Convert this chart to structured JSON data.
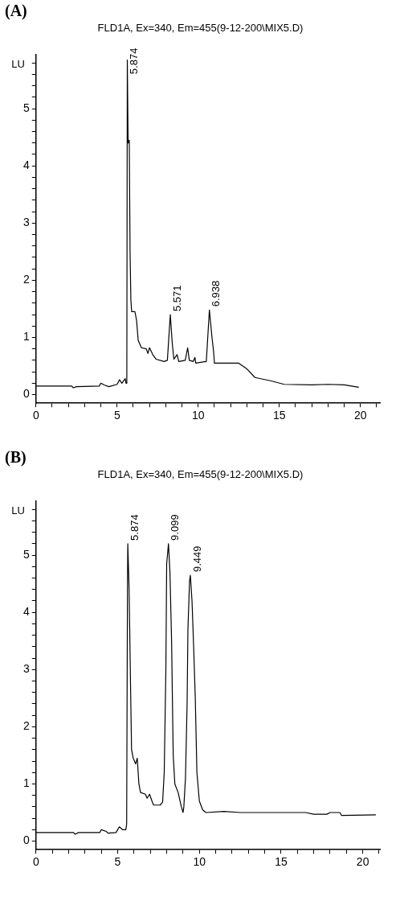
{
  "chart_data": [
    {
      "type": "line",
      "title": "FLD1A, Ex=340, Em=455(9-12-200\\MIX5.D)",
      "ylabel": "LU",
      "annotations": [
        "(A)",
        {
          "text": "5.874",
          "x": 5.63,
          "y": 5.85
        },
        {
          "text": "5.571",
          "x": 8.28,
          "y": 1.4
        },
        {
          "text": "6.938",
          "x": 10.69,
          "y": 1.48
        }
      ],
      "series": [
        {
          "color": "#000000",
          "x": [
            0,
            2.2,
            2.3,
            2.5,
            3.9,
            4.0,
            4.2,
            4.5,
            5.0,
            5.15,
            5.3,
            5.5,
            5.55,
            5.6,
            5.63,
            5.68,
            5.75,
            5.8,
            5.85,
            5.9,
            6.1,
            6.2,
            6.3,
            6.5,
            6.8,
            6.9,
            7.0,
            7.2,
            7.4,
            7.9,
            8.1,
            8.28,
            8.4,
            8.5,
            8.7,
            8.8,
            9.2,
            9.35,
            9.45,
            9.7,
            9.8,
            9.85,
            10.5,
            10.69,
            10.85,
            10.95,
            11.0,
            12.5,
            13.0,
            13.5,
            14.5,
            15.3,
            17.0,
            18.0,
            19.0,
            19.9
          ],
          "values": [
            0.15,
            0.15,
            0.12,
            0.14,
            0.15,
            0.2,
            0.17,
            0.14,
            0.18,
            0.26,
            0.2,
            0.28,
            0.2,
            0.2,
            5.85,
            4.4,
            4.45,
            2.5,
            1.65,
            1.45,
            1.45,
            1.3,
            0.95,
            0.82,
            0.8,
            0.72,
            0.82,
            0.7,
            0.62,
            0.58,
            0.6,
            1.4,
            0.9,
            0.62,
            0.7,
            0.58,
            0.6,
            0.82,
            0.6,
            0.58,
            0.65,
            0.55,
            0.58,
            1.48,
            1.0,
            0.75,
            0.55,
            0.55,
            0.45,
            0.3,
            0.24,
            0.18,
            0.17,
            0.18,
            0.17,
            0.13
          ]
        }
      ],
      "xlim": [
        0,
        21.2
      ],
      "xticks": [
        0,
        {
          "value": 1,
          "label": null
        },
        {
          "value": 2,
          "label": null
        },
        {
          "value": 3,
          "label": null
        },
        {
          "value": 4,
          "label": null
        },
        5,
        {
          "value": 6,
          "label": null
        },
        {
          "value": 7,
          "label": null
        },
        {
          "value": 8,
          "label": null
        },
        {
          "value": 9,
          "label": null
        },
        10,
        {
          "value": 11,
          "label": null
        },
        {
          "value": 12,
          "label": null
        },
        {
          "value": 13,
          "label": null
        },
        {
          "value": 14,
          "label": null
        },
        15,
        {
          "value": 16,
          "label": null
        },
        {
          "value": 17,
          "label": null
        },
        {
          "value": 18,
          "label": null
        },
        {
          "value": 19,
          "label": null
        },
        20,
        {
          "value": 21,
          "label": null
        }
      ],
      "ylim": [
        -0.15,
        5.95
      ],
      "yticks": [
        0,
        {
          "value": 0.2,
          "label": null
        },
        {
          "value": 0.4,
          "label": null
        },
        {
          "value": 0.6,
          "label": null
        },
        {
          "value": 0.8,
          "label": null
        },
        1,
        {
          "value": 1.2,
          "label": null
        },
        {
          "value": 1.4,
          "label": null
        },
        {
          "value": 1.6,
          "label": null
        },
        {
          "value": 1.8,
          "label": null
        },
        2,
        {
          "value": 2.2,
          "label": null
        },
        {
          "value": 2.4,
          "label": null
        },
        {
          "value": 2.6,
          "label": null
        },
        {
          "value": 2.8,
          "label": null
        },
        3,
        {
          "value": 3.2,
          "label": null
        },
        {
          "value": 3.4,
          "label": null
        },
        {
          "value": 3.6,
          "label": null
        },
        {
          "value": 3.8,
          "label": null
        },
        4,
        {
          "value": 4.2,
          "label": null
        },
        {
          "value": 4.4,
          "label": null
        },
        {
          "value": 4.6,
          "label": null
        },
        {
          "value": 4.8,
          "label": null
        },
        5,
        {
          "value": 5.2,
          "label": null
        },
        {
          "value": 5.4,
          "label": null
        },
        {
          "value": 5.6,
          "label": null
        },
        {
          "value": 5.8,
          "label": null
        }
      ]
    },
    {
      "type": "line",
      "title": "FLD1A, Ex=340, Em=455(9-12-200\\MIX5.D)",
      "ylabel": "LU",
      "annotations": [
        "(B)",
        {
          "text": "5.874",
          "x": 5.62,
          "y": 5.2
        },
        {
          "text": "9.099",
          "x": 8.11,
          "y": 5.2
        },
        {
          "text": "9.449",
          "x": 9.45,
          "y": 4.65
        }
      ],
      "series": [
        {
          "color": "#000000",
          "x": [
            0,
            2.3,
            2.4,
            2.6,
            3.9,
            4.0,
            4.3,
            4.4,
            4.9,
            5.1,
            5.3,
            5.5,
            5.55,
            5.6,
            5.62,
            5.7,
            5.8,
            5.85,
            5.95,
            6.1,
            6.2,
            6.3,
            6.4,
            6.7,
            6.8,
            6.95,
            7.1,
            7.2,
            7.6,
            7.75,
            7.85,
            7.95,
            8.0,
            8.11,
            8.2,
            8.3,
            8.4,
            8.5,
            8.7,
            8.9,
            9.0,
            9.05,
            9.15,
            9.25,
            9.3,
            9.4,
            9.45,
            9.55,
            9.65,
            9.75,
            9.85,
            10.0,
            10.2,
            10.4,
            11.5,
            12.5,
            16.5,
            17.0,
            17.8,
            18.0,
            18.6,
            18.7,
            20.8
          ],
          "values": [
            0.15,
            0.15,
            0.12,
            0.15,
            0.15,
            0.2,
            0.17,
            0.14,
            0.15,
            0.25,
            0.2,
            0.2,
            0.3,
            4.4,
            5.2,
            4.4,
            2.5,
            1.6,
            1.45,
            1.35,
            1.45,
            1.0,
            0.85,
            0.82,
            0.75,
            0.82,
            0.7,
            0.63,
            0.63,
            0.68,
            1.2,
            3.0,
            4.85,
            5.2,
            4.7,
            3.5,
            1.5,
            1.0,
            0.85,
            0.6,
            0.5,
            0.6,
            1.1,
            2.4,
            3.7,
            4.55,
            4.65,
            4.2,
            3.4,
            2.5,
            1.2,
            0.7,
            0.55,
            0.5,
            0.52,
            0.5,
            0.5,
            0.47,
            0.47,
            0.5,
            0.5,
            0.45,
            0.46
          ]
        }
      ],
      "xlim": [
        0,
        21.05
      ],
      "xticks": [
        0,
        {
          "value": 1,
          "label": null
        },
        {
          "value": 2,
          "label": null
        },
        {
          "value": 3,
          "label": null
        },
        {
          "value": 4,
          "label": null
        },
        5,
        {
          "value": 6,
          "label": null
        },
        {
          "value": 7,
          "label": null
        },
        {
          "value": 8,
          "label": null
        },
        {
          "value": 9,
          "label": null
        },
        10,
        {
          "value": 11,
          "label": null
        },
        {
          "value": 12,
          "label": null
        },
        {
          "value": 13,
          "label": null
        },
        {
          "value": 14,
          "label": null
        },
        15,
        {
          "value": 16,
          "label": null
        },
        {
          "value": 17,
          "label": null
        },
        {
          "value": 18,
          "label": null
        },
        {
          "value": 19,
          "label": null
        },
        20,
        {
          "value": 21,
          "label": null
        }
      ],
      "ylim": [
        -0.15,
        5.95
      ],
      "yticks": [
        0,
        {
          "value": 0.2,
          "label": null
        },
        {
          "value": 0.4,
          "label": null
        },
        {
          "value": 0.6,
          "label": null
        },
        {
          "value": 0.8,
          "label": null
        },
        1,
        {
          "value": 1.2,
          "label": null
        },
        {
          "value": 1.4,
          "label": null
        },
        {
          "value": 1.6,
          "label": null
        },
        {
          "value": 1.8,
          "label": null
        },
        2,
        {
          "value": 2.2,
          "label": null
        },
        {
          "value": 2.4,
          "label": null
        },
        {
          "value": 2.6,
          "label": null
        },
        {
          "value": 2.8,
          "label": null
        },
        3,
        {
          "value": 3.2,
          "label": null
        },
        {
          "value": 3.4,
          "label": null
        },
        {
          "value": 3.6,
          "label": null
        },
        {
          "value": 3.8,
          "label": null
        },
        4,
        {
          "value": 4.2,
          "label": null
        },
        {
          "value": 4.4,
          "label": null
        },
        {
          "value": 4.6,
          "label": null
        },
        {
          "value": 4.8,
          "label": null
        },
        5,
        {
          "value": 5.2,
          "label": null
        },
        {
          "value": 5.4,
          "label": null
        },
        {
          "value": 5.6,
          "label": null
        },
        {
          "value": 5.8,
          "label": null
        }
      ]
    }
  ]
}
